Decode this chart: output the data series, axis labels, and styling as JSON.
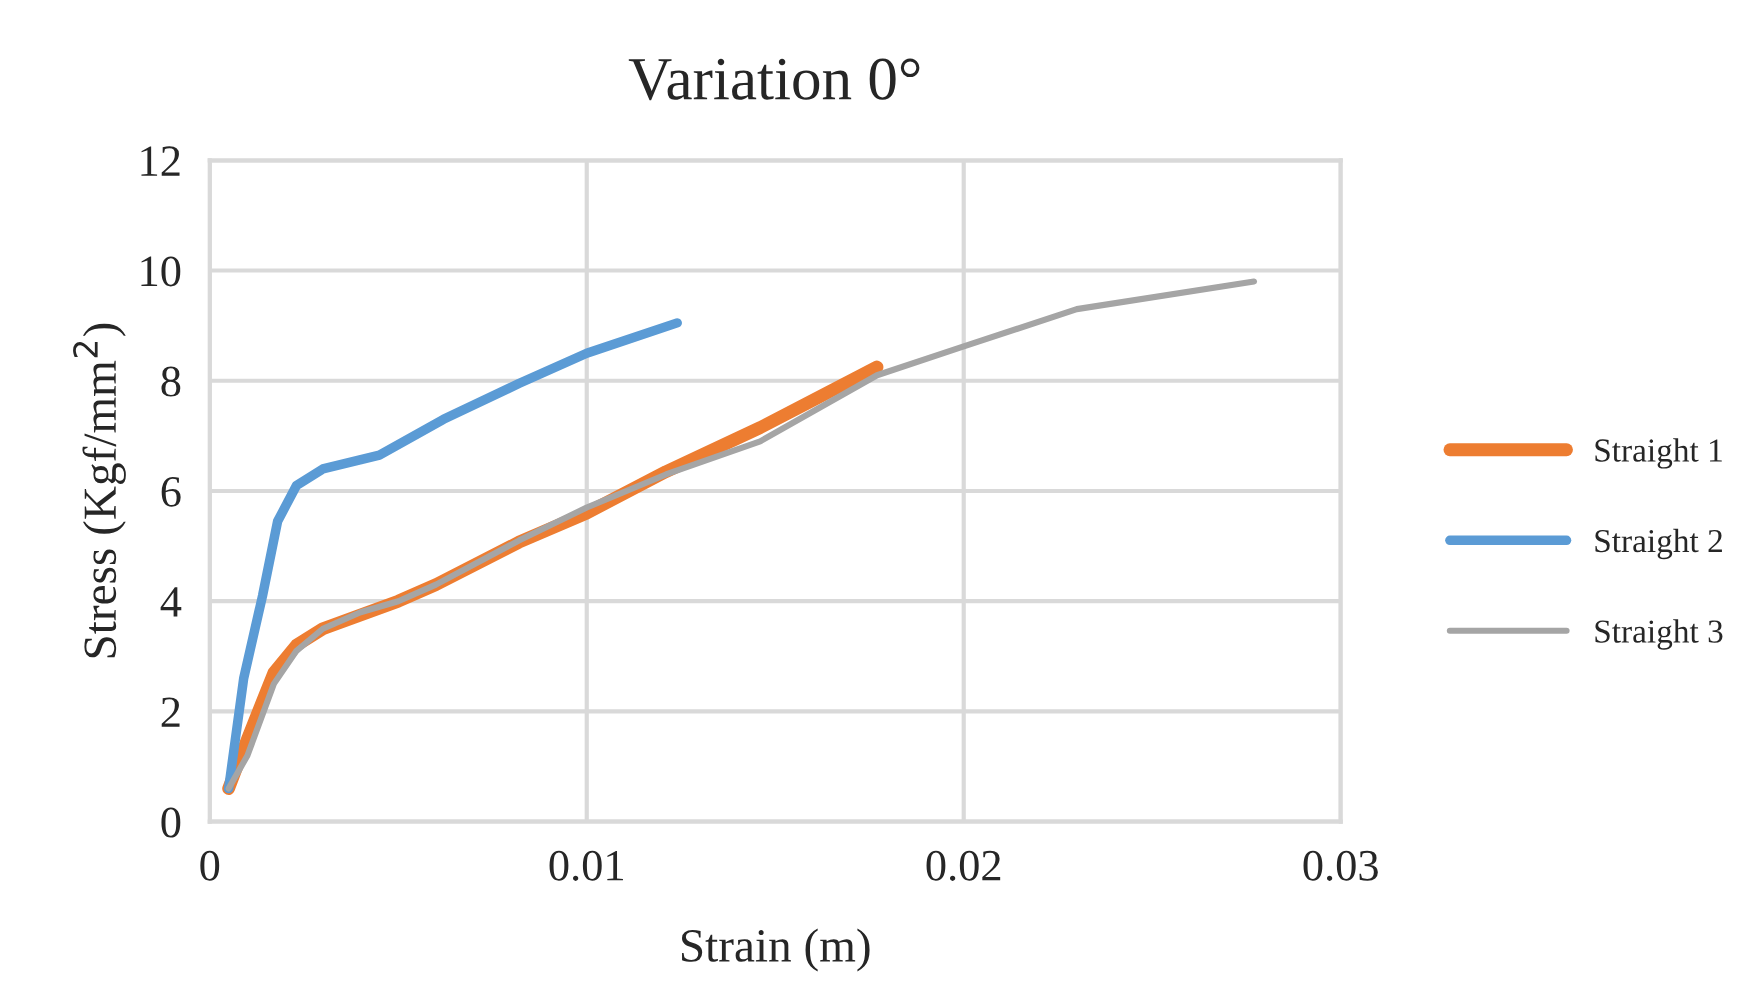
{
  "chart_data": {
    "type": "line",
    "title": "Variation 0°",
    "xlabel": "Strain (m)",
    "ylabel": "Stress (Kgf/mm$^{2}$)",
    "xlim": [
      0,
      0.03
    ],
    "xticks": [
      0,
      0.01,
      0.02,
      0.03
    ],
    "ylim": [
      0,
      12
    ],
    "yticks": [
      0,
      2,
      4,
      6,
      8,
      10,
      12
    ],
    "grid": true,
    "legend": "right",
    "marker": "none",
    "line_style": "solid",
    "series": [
      {
        "name": "Straight 1",
        "color": "#ed7d31",
        "x": [
          0.0005,
          0.001,
          0.0017,
          0.0023,
          0.003,
          0.004,
          0.005,
          0.006,
          0.0082,
          0.01,
          0.0121,
          0.0146,
          0.0177
        ],
        "values": [
          0.6,
          1.5,
          2.7,
          3.2,
          3.5,
          3.75,
          4.0,
          4.3,
          5.07,
          5.6,
          6.35,
          7.15,
          8.25
        ]
      },
      {
        "name": "Straight 2",
        "color": "#5b9bd5",
        "x": [
          0.0005,
          0.0009,
          0.0014,
          0.0018,
          0.0023,
          0.003,
          0.0045,
          0.0062,
          0.0082,
          0.01,
          0.0124
        ],
        "values": [
          0.6,
          2.6,
          4.1,
          5.45,
          6.1,
          6.4,
          6.65,
          7.3,
          7.95,
          8.5,
          9.05
        ]
      },
      {
        "name": "Straight 3",
        "color": "#a5a5a5",
        "x": [
          0.0005,
          0.001,
          0.0017,
          0.0023,
          0.003,
          0.004,
          0.005,
          0.006,
          0.0082,
          0.01,
          0.0121,
          0.0146,
          0.0177,
          0.0199,
          0.023,
          0.0277
        ],
        "values": [
          0.6,
          1.2,
          2.5,
          3.1,
          3.5,
          3.8,
          4.0,
          4.3,
          5.1,
          5.7,
          6.3,
          6.9,
          8.1,
          8.6,
          9.3,
          9.8
        ]
      }
    ]
  }
}
